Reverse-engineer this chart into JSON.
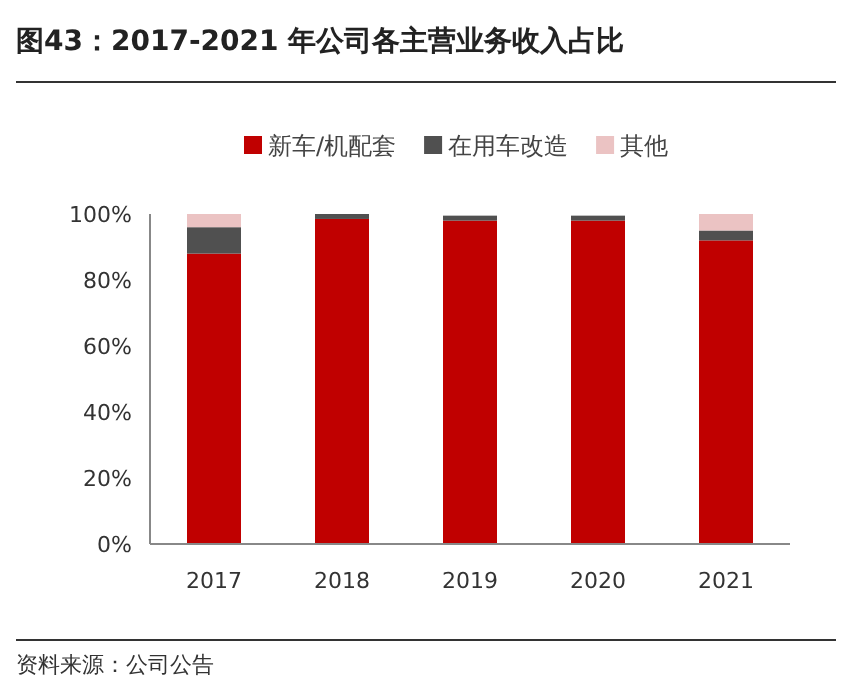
{
  "chart_data": {
    "type": "bar",
    "title": "图43：2017-2021 年公司各主营业务收入占比",
    "categories": [
      "2017",
      "2018",
      "2019",
      "2020",
      "2021"
    ],
    "stacked": true,
    "series": [
      {
        "name": "新车/机配套",
        "color": "#c00000",
        "values": [
          88,
          98.5,
          98,
          98,
          92
        ]
      },
      {
        "name": "在用车改造",
        "color": "#505050",
        "values": [
          8,
          1.5,
          1.5,
          1.5,
          3
        ]
      },
      {
        "name": "其他",
        "color": "#ebc3c3",
        "values": [
          4,
          0,
          null,
          null,
          5
        ]
      }
    ],
    "ylim": [
      0,
      100
    ],
    "yticks": [
      {
        "value": 0,
        "label": "0%"
      },
      {
        "value": 20,
        "label": "20%"
      },
      {
        "value": 40,
        "label": "40%"
      },
      {
        "value": 60,
        "label": "60%"
      },
      {
        "value": 80,
        "label": "80%"
      },
      {
        "value": 100,
        "label": "100%"
      }
    ],
    "legend": "top",
    "annotations": [
      "资料来源：公司公告"
    ]
  }
}
